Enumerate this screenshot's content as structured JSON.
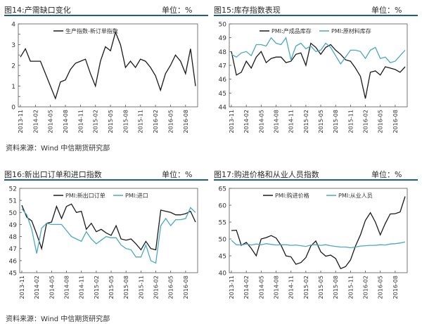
{
  "source_text": "资料来源：Wind  中信期货研究部",
  "panels": [
    {
      "title": "图14:产需缺口变化",
      "unit": "单位：%",
      "chart_data": {
        "type": "line",
        "ylim": [
          0,
          4
        ],
        "yticks": [
          0,
          0.5,
          1,
          1.5,
          2,
          2.5,
          3,
          3.5,
          4
        ],
        "ytick_labels": [
          "0",
          "",
          "1",
          "",
          "2",
          "",
          "3",
          "",
          "4"
        ],
        "grid": false,
        "legend": "top-center",
        "x_labels": [
          "2013-11",
          "2014-02",
          "2014-05",
          "2014-08",
          "2014-11",
          "2015-02",
          "2015-05",
          "2015-08",
          "2015-11",
          "2016-02",
          "2016-05",
          "2016-08"
        ],
        "series": [
          {
            "name": "生产指数-新订单指数",
            "color": "#1a1a1a",
            "values": [
              2.4,
              2.8,
              2.2,
              2.2,
              2.2,
              1.6,
              1.0,
              0.4,
              1.2,
              1.3,
              1.8,
              2.1,
              2.2,
              2.3,
              1.6,
              1.0,
              2.2,
              2.9,
              2.7,
              3.6,
              3.0,
              1.9,
              2.2,
              1.9,
              2.3,
              2.2,
              1.9,
              1.5,
              0.8,
              1.6,
              2.0,
              2.5,
              2.2,
              1.6,
              2.8,
              1.0
            ]
          }
        ]
      }
    },
    {
      "title": "图15:库存指数表现",
      "unit": "单位：%",
      "chart_data": {
        "type": "line",
        "ylim": [
          44,
          50
        ],
        "yticks": [
          44,
          45,
          46,
          47,
          48,
          49,
          50
        ],
        "ytick_labels": [
          "44",
          "45",
          "46",
          "47",
          "48",
          "49",
          "50"
        ],
        "grid": false,
        "legend": "top-center",
        "x_labels": [
          "2013-11",
          "2014-02",
          "2014-05",
          "2014-08",
          "2014-11",
          "2015-02",
          "2015-05",
          "2015-08",
          "2015-11",
          "2016-02",
          "2016-05",
          "2016-08"
        ],
        "series": [
          {
            "name": "PMI:产成品库存",
            "color": "#1a1a1a",
            "values": [
              48.0,
              46.3,
              46.5,
              47.3,
              46.8,
              47.6,
              48.0,
              47.2,
              47.5,
              47.6,
              47.6,
              47.2,
              47.3,
              47.8,
              47.9,
              47.0,
              48.6,
              48.3,
              47.8,
              48.3,
              48.5,
              48.1,
              47.8,
              47.4,
              47.3,
              46.8,
              46.2,
              44.6,
              46.5,
              46.6,
              46.3,
              46.9,
              46.8,
              46.7,
              46.5,
              46.9
            ]
          },
          {
            "name": "PMI:原材料库存",
            "color": "#4aa8c0",
            "values": [
              47.8,
              47.6,
              47.9,
              48.0,
              47.7,
              48.5,
              48.5,
              48.4,
              49.0,
              48.6,
              48.5,
              49.0,
              47.4,
              48.4,
              48.6,
              48.2,
              48.4,
              48.0,
              48.1,
              48.6,
              48.3,
              47.7,
              47.1,
              47.6,
              48.1,
              48.1,
              48.0,
              47.5,
              48.1,
              48.3,
              47.5,
              47.6,
              47.2,
              47.3,
              47.7,
              48.1
            ]
          }
        ]
      }
    },
    {
      "title": "图16:新出口订单和进口指数",
      "unit": "单位：%",
      "chart_data": {
        "type": "line",
        "ylim": [
          45,
          52
        ],
        "yticks": [
          45,
          46,
          47,
          48,
          49,
          50,
          51,
          52
        ],
        "ytick_labels": [
          "45",
          "46",
          "47",
          "48",
          "49",
          "50",
          "51",
          "52"
        ],
        "grid": false,
        "legend": "top-center",
        "x_labels": [
          "2013-11",
          "2014-02",
          "2014-05",
          "2014-08",
          "2014-11",
          "2015-02",
          "2015-05",
          "2015-08",
          "2015-11",
          "2016-02",
          "2016-05",
          "2016-08"
        ],
        "series": [
          {
            "name": "PMI:新出口订单",
            "color": "#1a1a1a",
            "values": [
              50.6,
              49.6,
              49.3,
              48.2,
              47.0,
              49.1,
              49.2,
              50.5,
              49.5,
              50.5,
              50.7,
              50.0,
              50.1,
              48.6,
              49.1,
              48.4,
              48.6,
              48.3,
              48.1,
              48.9,
              47.8,
              47.7,
              47.8,
              47.4,
              46.9,
              47.6,
              47.0,
              46.9,
              50.2,
              50.1,
              50.0,
              49.8,
              49.8,
              49.9,
              50.1,
              49.2
            ]
          },
          {
            "name": "PMI:进口",
            "color": "#4aa8c0",
            "values": [
              50.3,
              49.8,
              48.6,
              46.6,
              48.7,
              49.1,
              49.0,
              49.0,
              49.0,
              48.5,
              48.0,
              47.8,
              47.6,
              48.4,
              47.8,
              47.4,
              47.7,
              48.0,
              47.9,
              47.9,
              47.3,
              47.0,
              46.9,
              46.3,
              46.3,
              47.3,
              46.0,
              45.8,
              48.9,
              49.5,
              48.9,
              49.4,
              49.4,
              49.5,
              50.4,
              50.0
            ]
          }
        ]
      }
    },
    {
      "title": "图17:购进价格和从业人员指数",
      "unit": "单位：%",
      "chart_data": {
        "type": "line",
        "ylim": [
          40,
          65
        ],
        "yticks": [
          40,
          45,
          50,
          55,
          60,
          65
        ],
        "ytick_labels": [
          "40",
          "45",
          "50",
          "55",
          "60",
          "65"
        ],
        "grid": false,
        "legend": "top-center",
        "x_labels": [
          "2013-11",
          "2014-02",
          "2014-05",
          "2014-08",
          "2014-11",
          "2015-02",
          "2015-05",
          "2015-08",
          "2015-11",
          "2016-02",
          "2016-05",
          "2016-08"
        ],
        "series": [
          {
            "name": "PMI:购进价格",
            "color": "#1a1a1a",
            "values": [
              52.5,
              52.6,
              48.1,
              49.0,
              47.2,
              45.0,
              50.0,
              50.4,
              51.0,
              50.3,
              48.1,
              45.0,
              44.7,
              42.5,
              43.0,
              44.5,
              47.9,
              49.4,
              46.2,
              44.9,
              45.2,
              44.2,
              41.2,
              41.8,
              43.8,
              47.9,
              51.2,
              55.5,
              57.8,
              55.0,
              51.2,
              54.6,
              57.4,
              57.5,
              58.0,
              62.6
            ]
          },
          {
            "name": "PMI:从业人员",
            "color": "#4aa8c0",
            "values": [
              49.6,
              48.3,
              48.2,
              48.5,
              48.2,
              48.5,
              48.3,
              48.6,
              48.4,
              48.2,
              48.3,
              48.3,
              48.1,
              48.2,
              48.0,
              47.8,
              48.2,
              48.3,
              48.1,
              48.3,
              48.0,
              47.8,
              47.6,
              47.6,
              47.4,
              47.6,
              47.9,
              48.0,
              48.1,
              48.1,
              48.3,
              48.2,
              48.5,
              48.6,
              48.8,
              49.1
            ]
          }
        ]
      }
    }
  ]
}
